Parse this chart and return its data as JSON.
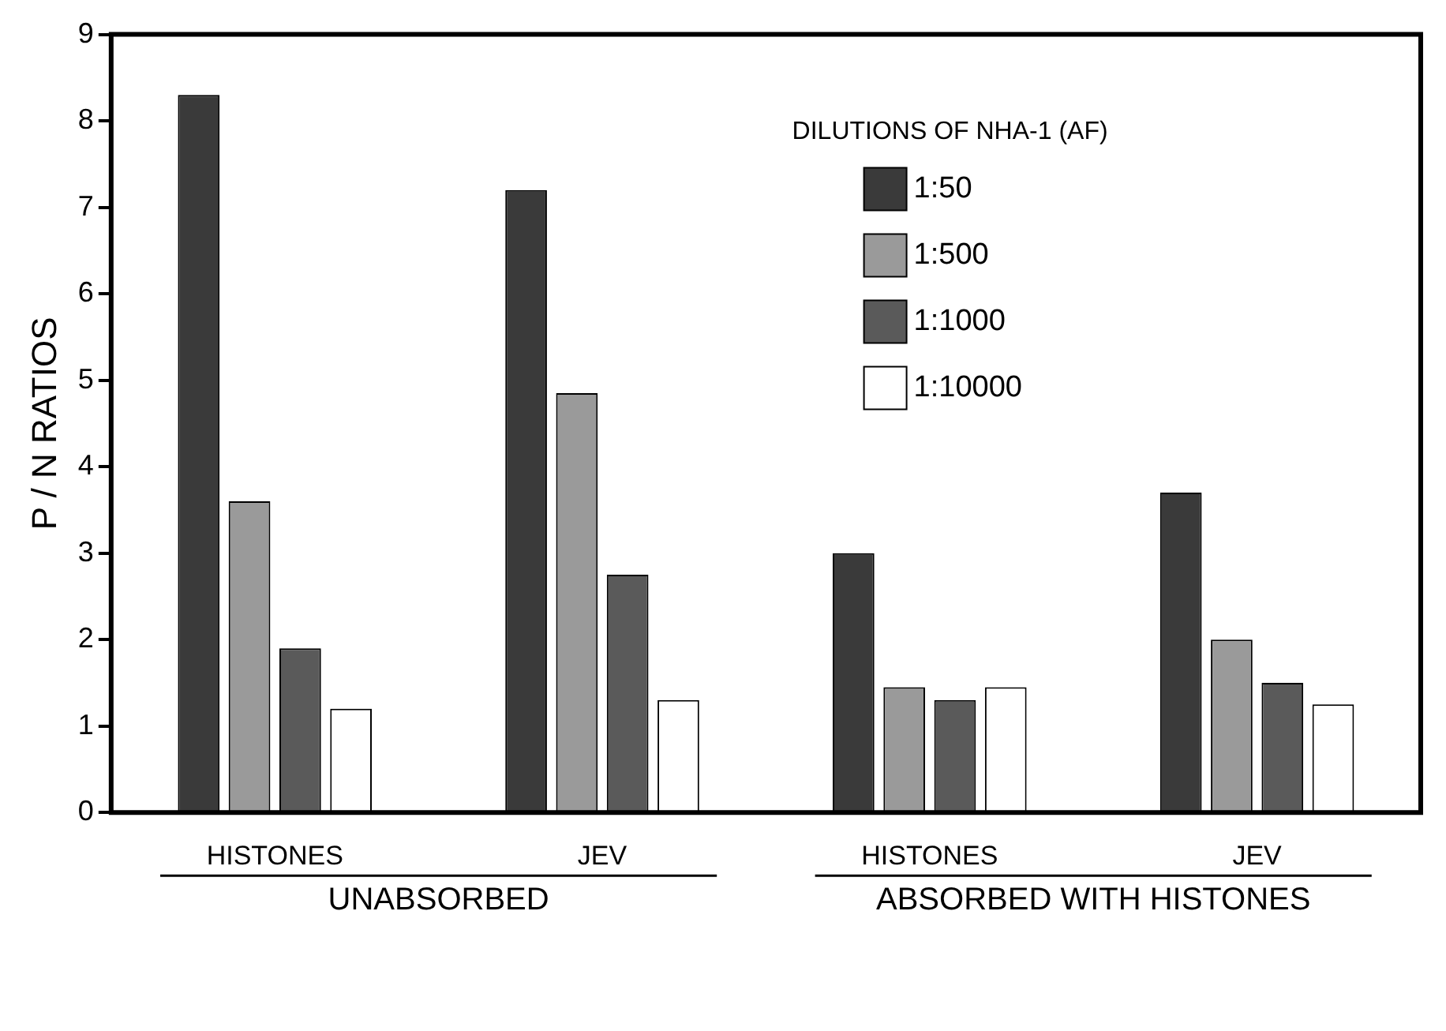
{
  "chart_data": {
    "type": "bar",
    "ylabel": "P / N RATIOS",
    "legend_title": "DILUTIONS OF NHA-1 (AF)",
    "categories": [
      "HISTONES",
      "JEV",
      "HISTONES",
      "JEV"
    ],
    "series": [
      {
        "name": "1:50",
        "color": "#3a3a3a",
        "values": [
          8.3,
          7.2,
          3.0,
          3.7
        ]
      },
      {
        "name": "1:500",
        "color": "#9a9a9a",
        "values": [
          3.6,
          4.85,
          1.45,
          2.0
        ]
      },
      {
        "name": "1:1000",
        "color": "#5a5a5a",
        "values": [
          1.9,
          2.75,
          1.3,
          1.5
        ]
      },
      {
        "name": "1:10000",
        "color": "#ffffff",
        "values": [
          1.2,
          1.3,
          1.45,
          1.25
        ]
      }
    ],
    "annotations": [
      "UNABSORBED",
      "ABSORBED WITH HISTONES"
    ],
    "ylim": [
      0,
      9
    ],
    "yticks": [
      0,
      1,
      2,
      3,
      4,
      5,
      6,
      7,
      8,
      9
    ],
    "grid": false,
    "legend": "top right"
  }
}
